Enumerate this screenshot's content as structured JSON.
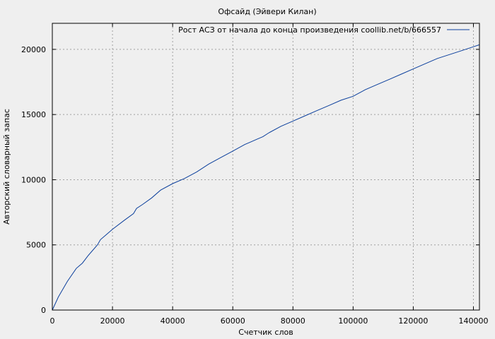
{
  "chart_data": {
    "type": "line",
    "title": "Офсайд (Эйвери Килан)",
    "xlabel": "Счетчик слов",
    "ylabel": "Авторский словарный запас",
    "xlim": [
      0,
      142000
    ],
    "ylim": [
      0,
      22000
    ],
    "x_ticks": [
      0,
      20000,
      40000,
      60000,
      80000,
      100000,
      120000,
      140000
    ],
    "y_ticks": [
      0,
      5000,
      10000,
      15000,
      20000
    ],
    "x_tick_labels": [
      "0",
      "20000",
      "40000",
      "60000",
      "80000",
      "100000",
      "120000",
      "140000"
    ],
    "y_tick_labels": [
      "0",
      "5000",
      "10000",
      "15000",
      "20000"
    ],
    "grid": true,
    "legend_position": "top-right",
    "colors": {
      "series": "#0b3f9c",
      "grid": "#a0a0a0",
      "background": "#efefef"
    },
    "series": [
      {
        "name": "Рост АСЗ от начала до конца произведения coollib.net/b/666557",
        "x": [
          0,
          2000,
          5000,
          8000,
          10000,
          12000,
          15000,
          16000,
          18000,
          20000,
          24000,
          27000,
          28000,
          30000,
          33000,
          36000,
          40000,
          44000,
          48000,
          52000,
          56000,
          60000,
          64000,
          66000,
          68000,
          70000,
          72000,
          76000,
          80000,
          84000,
          88000,
          92000,
          96000,
          100000,
          104000,
          108000,
          112000,
          116000,
          120000,
          124000,
          128000,
          132000,
          136000,
          140000,
          142000
        ],
        "y": [
          0,
          1000,
          2200,
          3200,
          3600,
          4200,
          5000,
          5400,
          5800,
          6200,
          6900,
          7400,
          7800,
          8100,
          8600,
          9200,
          9700,
          10100,
          10600,
          11200,
          11700,
          12200,
          12700,
          12900,
          13100,
          13300,
          13600,
          14100,
          14500,
          14900,
          15300,
          15700,
          16100,
          16400,
          16900,
          17300,
          17700,
          18100,
          18500,
          18900,
          19300,
          19600,
          19900,
          20200,
          20350
        ]
      }
    ]
  }
}
